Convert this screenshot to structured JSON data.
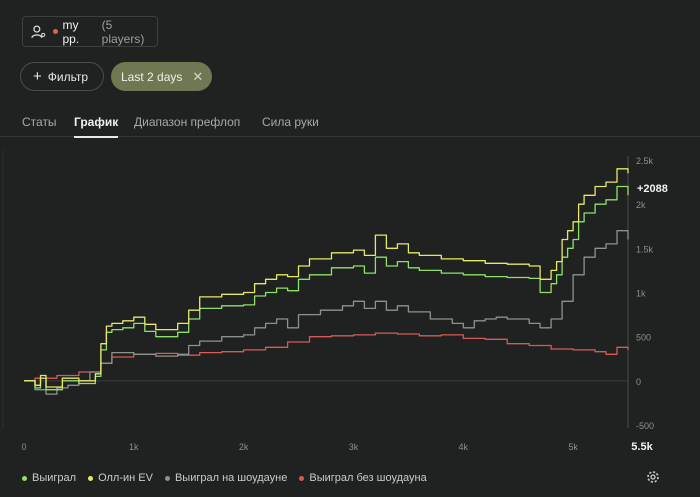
{
  "player": {
    "name": "my pp.",
    "count": "(5 players)"
  },
  "filters": {
    "filter_label": "Фильтр",
    "chip_label": "Last 2 days"
  },
  "tabs": [
    "Статы",
    "График",
    "Диапазон префлоп",
    "Сила руки"
  ],
  "active_tab": "График",
  "chart_data": {
    "type": "line",
    "xlim": [
      0,
      5500
    ],
    "ylim": [
      -500,
      2500
    ],
    "x_ticks": [
      "0",
      "1k",
      "2k",
      "3k",
      "4k",
      "5k",
      "5.5k"
    ],
    "y_ticks": [
      "2.5k",
      "2k",
      "1.5k",
      "1k",
      "500",
      "0",
      "-500"
    ],
    "end_label": "+2088",
    "grid": false,
    "legend_position": "bottom-left",
    "series": [
      {
        "name": "Выиграл",
        "color": "#8fe06a",
        "x": [
          0,
          100,
          150,
          200,
          350,
          500,
          650,
          700,
          750,
          800,
          900,
          1000,
          1100,
          1200,
          1400,
          1500,
          1600,
          1800,
          2000,
          2100,
          2200,
          2300,
          2400,
          2500,
          2600,
          2800,
          3000,
          3100,
          3200,
          3300,
          3400,
          3500,
          3600,
          3800,
          4000,
          4200,
          4400,
          4600,
          4700,
          4800,
          4850,
          4900,
          4950,
          5000,
          5050,
          5100,
          5200,
          5300,
          5400,
          5500
        ],
        "y": [
          0,
          -80,
          30,
          -100,
          0,
          -30,
          50,
          350,
          550,
          580,
          600,
          650,
          560,
          500,
          550,
          700,
          820,
          850,
          860,
          960,
          1000,
          1050,
          1020,
          1150,
          1200,
          1280,
          1300,
          1220,
          1400,
          1300,
          1350,
          1280,
          1250,
          1220,
          1200,
          1180,
          1170,
          1160,
          1000,
          1100,
          1200,
          1400,
          1500,
          1600,
          1800,
          1900,
          2000,
          2050,
          2200,
          2100
        ]
      },
      {
        "name": "Олл-ин EV",
        "color": "#e6e86a",
        "x": [
          0,
          100,
          150,
          200,
          350,
          500,
          650,
          700,
          750,
          800,
          900,
          1000,
          1100,
          1200,
          1400,
          1500,
          1600,
          1800,
          2000,
          2100,
          2200,
          2300,
          2400,
          2500,
          2600,
          2800,
          3000,
          3100,
          3200,
          3300,
          3400,
          3500,
          3600,
          3800,
          4000,
          4200,
          4400,
          4600,
          4700,
          4800,
          4850,
          4900,
          4950,
          5000,
          5050,
          5100,
          5200,
          5300,
          5400,
          5500
        ],
        "y": [
          0,
          -50,
          60,
          -70,
          30,
          0,
          80,
          420,
          620,
          650,
          680,
          720,
          640,
          580,
          650,
          800,
          950,
          980,
          1000,
          1100,
          1150,
          1200,
          1180,
          1300,
          1380,
          1450,
          1480,
          1420,
          1650,
          1500,
          1550,
          1450,
          1420,
          1380,
          1360,
          1330,
          1320,
          1300,
          1150,
          1250,
          1350,
          1600,
          1700,
          1800,
          2000,
          2100,
          2200,
          2250,
          2400,
          2350
        ]
      },
      {
        "name": "Выиграл на шоудауне",
        "color": "#8f928c",
        "x": [
          0,
          100,
          200,
          300,
          400,
          500,
          600,
          700,
          800,
          1000,
          1200,
          1400,
          1500,
          1600,
          1800,
          2000,
          2100,
          2200,
          2300,
          2400,
          2500,
          2700,
          2900,
          3000,
          3100,
          3200,
          3300,
          3400,
          3500,
          3700,
          3900,
          4000,
          4100,
          4200,
          4300,
          4400,
          4600,
          4700,
          4800,
          4900,
          5000,
          5100,
          5200,
          5300,
          5400,
          5500
        ],
        "y": [
          0,
          -100,
          -150,
          -80,
          -50,
          0,
          100,
          200,
          320,
          300,
          280,
          300,
          400,
          450,
          500,
          520,
          600,
          650,
          700,
          600,
          750,
          800,
          850,
          900,
          820,
          900,
          800,
          850,
          780,
          700,
          650,
          600,
          680,
          700,
          720,
          700,
          650,
          600,
          700,
          900,
          1200,
          1400,
          1500,
          1550,
          1700,
          1600
        ]
      },
      {
        "name": "Выиграл без шоудауна",
        "color": "#d85a55",
        "x": [
          0,
          100,
          300,
          500,
          700,
          800,
          1000,
          1200,
          1400,
          1600,
          1800,
          2000,
          2200,
          2400,
          2600,
          2800,
          3000,
          3200,
          3400,
          3600,
          3800,
          4000,
          4200,
          4400,
          4600,
          4800,
          5000,
          5200,
          5300,
          5400,
          5500
        ],
        "y": [
          0,
          30,
          60,
          100,
          200,
          270,
          300,
          310,
          290,
          320,
          330,
          350,
          380,
          440,
          500,
          510,
          520,
          540,
          530,
          510,
          520,
          480,
          470,
          420,
          400,
          360,
          350,
          330,
          300,
          380,
          350
        ]
      }
    ]
  }
}
